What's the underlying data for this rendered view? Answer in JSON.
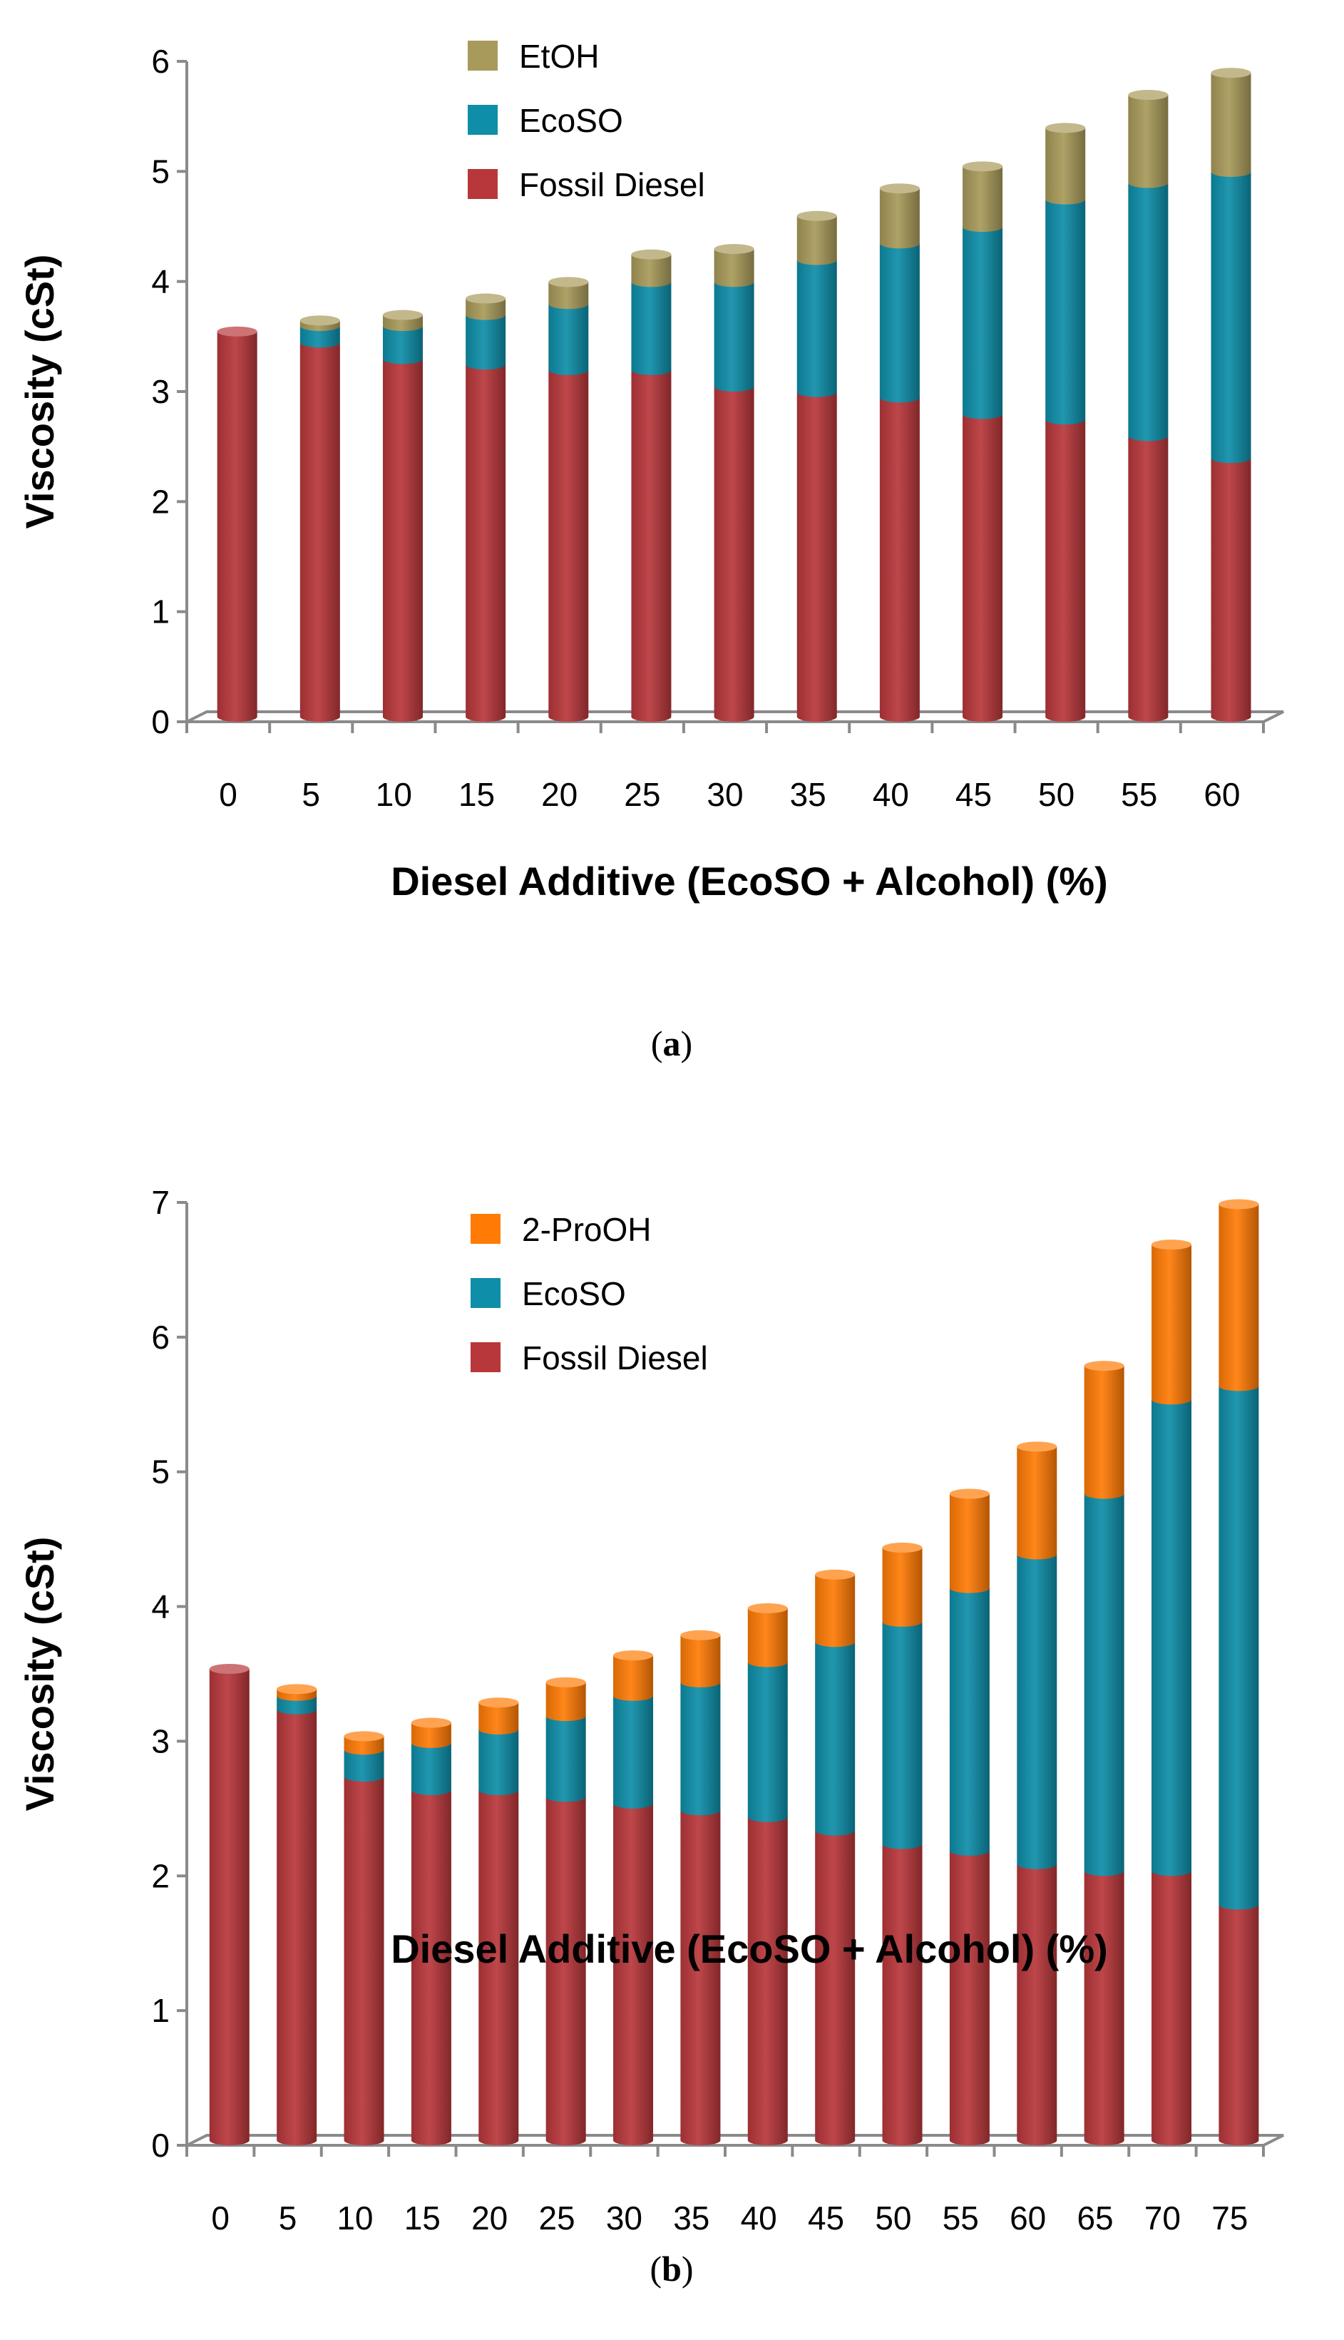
{
  "chart_data": [
    {
      "type": "bar",
      "stacked": true,
      "panel_label": "a",
      "xlabel": "Diesel Additive (EcoSO + Alcohol) (%)",
      "ylabel": "Viscosity (cSt)",
      "ylim": [
        0,
        6
      ],
      "yticks": [
        "0",
        "1",
        "2",
        "3",
        "4",
        "5",
        "6"
      ],
      "categories": [
        "0",
        "5",
        "10",
        "15",
        "20",
        "25",
        "30",
        "35",
        "40",
        "45",
        "50",
        "55",
        "60"
      ],
      "legend_position": "top-center",
      "series": [
        {
          "name": "Fossil Diesel",
          "color": "#b8373b",
          "values": [
            3.5,
            3.4,
            3.25,
            3.2,
            3.15,
            3.15,
            3.0,
            2.95,
            2.9,
            2.75,
            2.7,
            2.55,
            2.35
          ]
        },
        {
          "name": "EcoSO",
          "color": "#0e8ea8",
          "values": [
            0.0,
            0.15,
            0.3,
            0.45,
            0.6,
            0.8,
            0.95,
            1.2,
            1.4,
            1.7,
            2.0,
            2.3,
            2.6
          ]
        },
        {
          "name": "EtOH",
          "color": "#a89a5a",
          "values": [
            0.0,
            0.05,
            0.1,
            0.15,
            0.2,
            0.25,
            0.3,
            0.4,
            0.5,
            0.55,
            0.65,
            0.8,
            0.9
          ]
        }
      ]
    },
    {
      "type": "bar",
      "stacked": true,
      "panel_label": "b",
      "xlabel": "Diesel Additive (EcoSO + Alcohol) (%)",
      "ylabel": "Viscosity (cSt)",
      "ylim": [
        0,
        7
      ],
      "yticks": [
        "0",
        "1",
        "2",
        "3",
        "4",
        "5",
        "6",
        "7"
      ],
      "categories": [
        "0",
        "5",
        "10",
        "15",
        "20",
        "25",
        "30",
        "35",
        "40",
        "45",
        "50",
        "55",
        "60",
        "65",
        "70",
        "75"
      ],
      "legend_position": "top-center",
      "series": [
        {
          "name": "Fossil Diesel",
          "color": "#b8373b",
          "values": [
            3.5,
            3.2,
            2.7,
            2.6,
            2.6,
            2.55,
            2.5,
            2.45,
            2.4,
            2.3,
            2.2,
            2.15,
            2.05,
            2.0,
            2.0,
            1.75
          ]
        },
        {
          "name": "EcoSO",
          "color": "#0e8ea8",
          "values": [
            0.0,
            0.1,
            0.2,
            0.35,
            0.45,
            0.6,
            0.8,
            0.95,
            1.15,
            1.4,
            1.65,
            1.95,
            2.3,
            2.8,
            3.5,
            3.85
          ]
        },
        {
          "name": "2-ProOH",
          "color": "#ff7b06",
          "values": [
            0.0,
            0.05,
            0.1,
            0.15,
            0.2,
            0.25,
            0.3,
            0.35,
            0.4,
            0.5,
            0.55,
            0.7,
            0.8,
            0.95,
            1.15,
            1.35
          ]
        }
      ]
    }
  ]
}
